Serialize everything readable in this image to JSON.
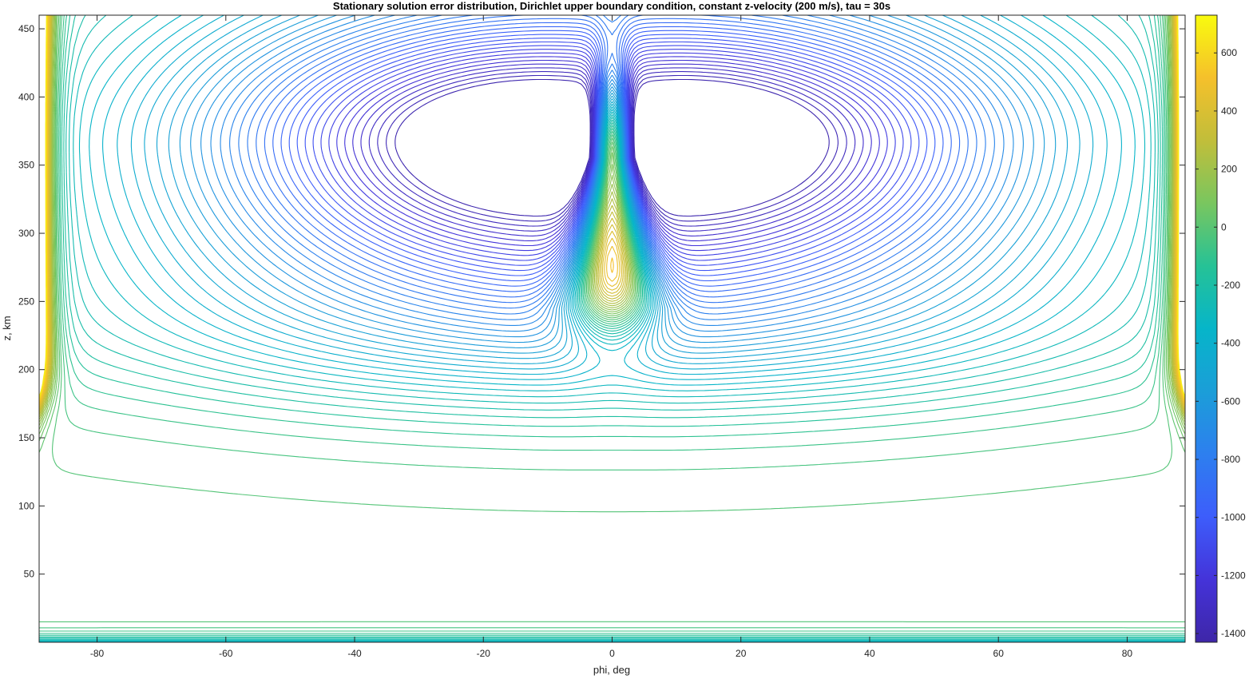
{
  "chart_data": {
    "type": "contour",
    "title": "Stationary solution error distribution, Dirichlet upper boundary condition, constant z-velocity (200 m/s), tau = 30s",
    "xlabel": "phi, deg",
    "ylabel": "z, km",
    "xlim": [
      -89,
      89
    ],
    "ylim": [
      0,
      460
    ],
    "xticks": [
      -80,
      -60,
      -40,
      -20,
      0,
      20,
      40,
      60,
      80
    ],
    "yticks": [
      50,
      100,
      150,
      200,
      250,
      300,
      350,
      400,
      450
    ],
    "colorbar": {
      "colormap": "parula",
      "range": [
        -1430,
        730
      ],
      "ticks": [
        600,
        400,
        200,
        0,
        -200,
        -400,
        -600,
        -800,
        -1000,
        -1200,
        -1400
      ]
    },
    "grid": false,
    "features": {
      "negative_lobes_centers": [
        [
          -14,
          370
        ],
        [
          14,
          370
        ]
      ],
      "negative_lobes_min": -1430,
      "central_positive_ridge": {
        "x": 0,
        "z_range": [
          250,
          360
        ],
        "max": 730
      },
      "side_boundary_positive": {
        "x": [
          -89,
          89
        ],
        "z_range": [
          200,
          460
        ],
        "value": 600
      },
      "bottom_layer_levels_z": [
        25,
        19,
        15,
        12,
        9,
        6,
        3
      ],
      "lower_envelope_z_at_edges": 160
    }
  }
}
